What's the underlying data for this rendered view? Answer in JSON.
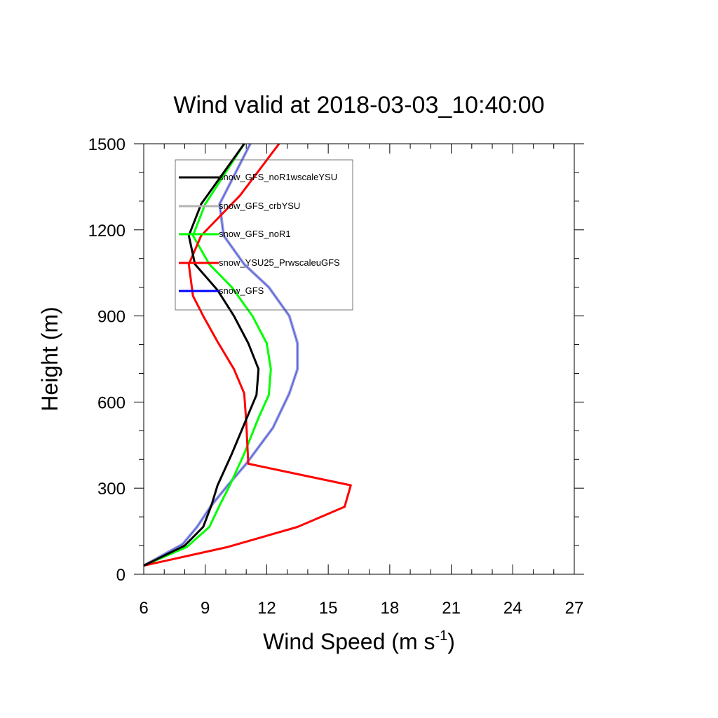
{
  "chart_data": {
    "type": "line",
    "title": "Wind valid at 2018-03-03_10:40:00",
    "xlabel": "Wind Speed (m s",
    "xlabel_sup": "-1",
    "xlabel_tail": ")",
    "ylabel": "Height (m)",
    "xlim": [
      6,
      27
    ],
    "ylim": [
      0,
      1500
    ],
    "x_ticks": [
      6,
      9,
      12,
      15,
      18,
      21,
      24,
      27
    ],
    "y_ticks": [
      0,
      300,
      600,
      900,
      1200,
      1500
    ],
    "x_tick_labels": [
      "6",
      "9",
      "12",
      "15",
      "18",
      "21",
      "24",
      "27"
    ],
    "y_tick_labels": [
      "0",
      "300",
      "600",
      "900",
      "1200",
      "1500"
    ],
    "grid": false,
    "legend_position": "top-left",
    "series": [
      {
        "name": "snow_GFS_noR1wscaleYSU",
        "color": "#000000",
        "points": [
          [
            6.0,
            30
          ],
          [
            8.0,
            100
          ],
          [
            8.9,
            165
          ],
          [
            9.3,
            240
          ],
          [
            9.6,
            310
          ],
          [
            10.3,
            420
          ],
          [
            11.0,
            540
          ],
          [
            11.5,
            625
          ],
          [
            11.6,
            715
          ],
          [
            11.1,
            805
          ],
          [
            10.4,
            900
          ],
          [
            9.6,
            990
          ],
          [
            8.5,
            1080
          ],
          [
            8.2,
            1180
          ],
          [
            8.8,
            1290
          ],
          [
            10.9,
            1500
          ]
        ]
      },
      {
        "name": "snow_GFS_crbYSU",
        "color": "#b4b4b4",
        "points": [
          [
            6.0,
            30
          ],
          [
            7.9,
            105
          ],
          [
            8.6,
            165
          ],
          [
            9.3,
            240
          ],
          [
            10.1,
            310
          ],
          [
            11.0,
            385
          ],
          [
            12.3,
            510
          ],
          [
            13.1,
            630
          ],
          [
            13.5,
            715
          ],
          [
            13.5,
            805
          ],
          [
            13.1,
            900
          ],
          [
            12.1,
            1000
          ],
          [
            10.9,
            1080
          ],
          [
            9.9,
            1180
          ],
          [
            9.7,
            1290
          ],
          [
            11.2,
            1500
          ]
        ]
      },
      {
        "name": "snow_GFS_noR1",
        "color": "#00ff00",
        "points": [
          [
            6.0,
            30
          ],
          [
            8.1,
            95
          ],
          [
            9.2,
            165
          ],
          [
            9.7,
            240
          ],
          [
            10.2,
            310
          ],
          [
            10.9,
            420
          ],
          [
            11.6,
            545
          ],
          [
            12.1,
            625
          ],
          [
            12.2,
            715
          ],
          [
            12.0,
            805
          ],
          [
            11.3,
            900
          ],
          [
            10.3,
            1000
          ],
          [
            9.2,
            1080
          ],
          [
            8.4,
            1180
          ],
          [
            9.0,
            1290
          ],
          [
            10.9,
            1500
          ]
        ]
      },
      {
        "name": "snow_YSU25_PrwscaleuGFS",
        "color": "#ff0000",
        "points": [
          [
            6.0,
            30
          ],
          [
            10.1,
            95
          ],
          [
            13.5,
            165
          ],
          [
            15.8,
            235
          ],
          [
            16.1,
            310
          ],
          [
            11.1,
            385
          ],
          [
            11.0,
            530
          ],
          [
            10.9,
            630
          ],
          [
            10.4,
            715
          ],
          [
            9.6,
            810
          ],
          [
            8.9,
            900
          ],
          [
            8.4,
            970
          ],
          [
            8.2,
            1080
          ],
          [
            8.8,
            1180
          ],
          [
            10.7,
            1320
          ],
          [
            12.6,
            1500
          ]
        ]
      },
      {
        "name": "snow_GFS",
        "color": "#0000ff",
        "points": [
          [
            6.0,
            30
          ],
          [
            7.9,
            105
          ],
          [
            8.6,
            165
          ],
          [
            9.3,
            240
          ],
          [
            10.1,
            310
          ],
          [
            11.0,
            385
          ],
          [
            12.3,
            510
          ],
          [
            13.1,
            630
          ],
          [
            13.5,
            715
          ],
          [
            13.5,
            805
          ],
          [
            13.1,
            900
          ],
          [
            12.1,
            1000
          ],
          [
            10.9,
            1080
          ],
          [
            9.9,
            1180
          ],
          [
            9.7,
            1290
          ],
          [
            11.2,
            1500
          ]
        ]
      }
    ]
  }
}
